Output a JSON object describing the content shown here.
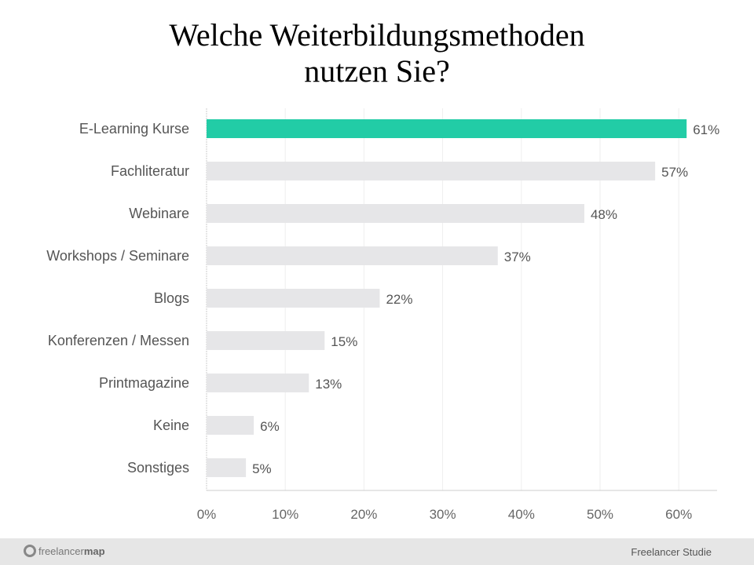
{
  "chart_data": {
    "type": "bar",
    "orientation": "horizontal",
    "title": "Welche Weiterbildungsmethoden nutzen Sie?",
    "title_lines": [
      "Welche Weiterbildungsmethoden",
      "nutzen Sie?"
    ],
    "categories": [
      "E-Learning Kurse",
      "Fachliteratur",
      "Webinare",
      "Workshops / Seminare",
      "Blogs",
      "Konferenzen / Messen",
      "Printmagazine",
      "Keine",
      "Sonstiges"
    ],
    "values": [
      61,
      57,
      48,
      37,
      22,
      15,
      13,
      6,
      5
    ],
    "data_labels": [
      "61%",
      "57%",
      "48%",
      "37%",
      "22%",
      "15%",
      "13%",
      "6%",
      "5%"
    ],
    "xlim": [
      0,
      65
    ],
    "xticks": [
      0,
      10,
      20,
      30,
      40,
      50,
      60
    ],
    "xtick_labels": [
      "0%",
      "10%",
      "20%",
      "30%",
      "40%",
      "50%",
      "60%"
    ],
    "grid": true,
    "highlight_color": "#22cca6",
    "bar_color": "#e6e6e8"
  },
  "footer": {
    "logo_text_light": "freelancer",
    "logo_text_bold": "map",
    "source": "Freelancer Studie"
  }
}
